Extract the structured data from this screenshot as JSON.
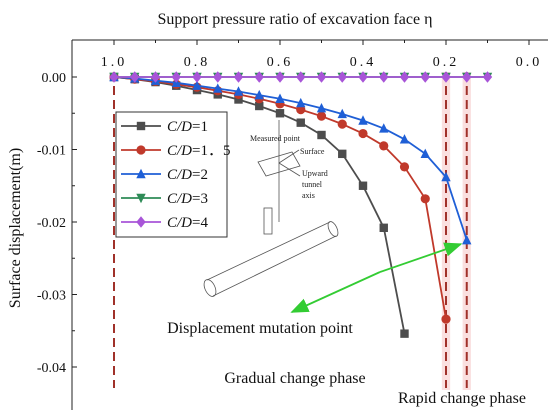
{
  "chart_data": {
    "type": "line",
    "title": "Support pressure ratio of excavation face η",
    "xlabel": "Support pressure ratio of excavation face η",
    "ylabel": "Surface displacement(m)",
    "x_axis_position": "top",
    "x_reversed": true,
    "xlim": [
      1.0,
      0.0
    ],
    "ylim": [
      -0.045,
      0.003
    ],
    "xticks": [
      {
        "value": 1.0,
        "label": "1.0"
      },
      {
        "value": 0.8,
        "label": "0.8"
      },
      {
        "value": 0.6,
        "label": "0.6"
      },
      {
        "value": 0.4,
        "label": "0.4"
      },
      {
        "value": 0.2,
        "label": "0.2"
      },
      {
        "value": 0.0,
        "label": "0.0"
      }
    ],
    "yticks": [
      {
        "value": 0.0,
        "label": "0.00"
      },
      {
        "value": -0.01,
        "label": "-0.01"
      },
      {
        "value": -0.02,
        "label": "-0.02"
      },
      {
        "value": -0.03,
        "label": "-0.03"
      },
      {
        "value": -0.04,
        "label": "-0.04"
      }
    ],
    "legend_position": "left",
    "series": [
      {
        "name": "C/D=1",
        "name_italic": "C/D",
        "name_rest": "=1",
        "color": "#4d4d4d",
        "marker": "square",
        "x": [
          1.0,
          0.95,
          0.9,
          0.85,
          0.8,
          0.75,
          0.7,
          0.65,
          0.6,
          0.55,
          0.5,
          0.45,
          0.4,
          0.35,
          0.3
        ],
        "y": [
          0.0,
          -0.0003,
          -0.0007,
          -0.0012,
          -0.0018,
          -0.0024,
          -0.0031,
          -0.004,
          -0.005,
          -0.0063,
          -0.008,
          -0.0106,
          -0.015,
          -0.0208,
          -0.0354
        ]
      },
      {
        "name": "C/D=1.5",
        "name_italic": "C/D",
        "name_rest": "=1．5",
        "color": "#c0392b",
        "marker": "circle",
        "x": [
          1.0,
          0.95,
          0.9,
          0.85,
          0.8,
          0.75,
          0.7,
          0.65,
          0.6,
          0.55,
          0.5,
          0.45,
          0.4,
          0.35,
          0.3,
          0.25,
          0.2
        ],
        "y": [
          0.0,
          -0.0003,
          -0.0006,
          -0.001,
          -0.0014,
          -0.0019,
          -0.0024,
          -0.003,
          -0.0037,
          -0.0045,
          -0.0054,
          -0.0065,
          -0.0078,
          -0.0095,
          -0.0124,
          -0.0168,
          -0.0334
        ]
      },
      {
        "name": "C/D=2",
        "name_italic": "C/D",
        "name_rest": "=2",
        "color": "#1f5fd6",
        "marker": "triangle-up",
        "x": [
          1.0,
          0.95,
          0.9,
          0.85,
          0.8,
          0.75,
          0.7,
          0.65,
          0.6,
          0.55,
          0.5,
          0.45,
          0.4,
          0.35,
          0.3,
          0.25,
          0.2,
          0.15
        ],
        "y": [
          0.0,
          -0.0002,
          -0.0005,
          -0.0008,
          -0.0012,
          -0.0016,
          -0.002,
          -0.0025,
          -0.003,
          -0.0036,
          -0.0043,
          -0.0051,
          -0.006,
          -0.0071,
          -0.0086,
          -0.0106,
          -0.0138,
          -0.0225
        ]
      },
      {
        "name": "C/D=3",
        "name_italic": "C/D",
        "name_rest": "=3",
        "color": "#2e8b57",
        "marker": "triangle-down",
        "x": [
          1.0,
          0.95,
          0.9,
          0.85,
          0.8,
          0.75,
          0.7,
          0.65,
          0.6,
          0.55,
          0.5,
          0.45,
          0.4,
          0.35,
          0.3,
          0.25,
          0.2,
          0.15,
          0.1
        ],
        "y": [
          0.0,
          0.0,
          0.0,
          0.0,
          0.0,
          0.0,
          0.0,
          0.0,
          0.0,
          0.0,
          0.0,
          0.0,
          0.0,
          0.0,
          0.0,
          0.0,
          0.0,
          0.0,
          0.0
        ]
      },
      {
        "name": "C/D=4",
        "name_italic": "C/D",
        "name_rest": "=4",
        "color": "#a855d8",
        "marker": "diamond",
        "x": [
          1.0,
          0.95,
          0.9,
          0.85,
          0.8,
          0.75,
          0.7,
          0.65,
          0.6,
          0.55,
          0.5,
          0.45,
          0.4,
          0.35,
          0.3,
          0.25,
          0.2,
          0.15,
          0.1
        ],
        "y": [
          0.0,
          0.0,
          0.0,
          0.0,
          0.0,
          0.0,
          0.0,
          0.0,
          0.0,
          0.0,
          0.0,
          0.0,
          0.0,
          0.0,
          0.0,
          0.0,
          0.0,
          0.0,
          0.0
        ]
      }
    ],
    "reference_lines": [
      {
        "x": 1.0,
        "color": "#a0312a",
        "style": "dashed"
      },
      {
        "x": 0.2,
        "color": "#a0312a",
        "style": "dashed"
      },
      {
        "x": 0.15,
        "color": "#a0312a",
        "style": "dashed"
      }
    ],
    "shaded_bands": [
      {
        "x_from": 0.21,
        "x_to": 0.19,
        "color": "#f6c4c4"
      },
      {
        "x_from": 0.16,
        "x_to": 0.14,
        "color": "#f6c4c4"
      }
    ],
    "annotations": {
      "mutation_label": "Displacement mutation point",
      "gradual_label": "Gradual change phase",
      "rapid_label": "Rapid change phase",
      "arrow_color": "#33cc33",
      "arrow_target_series": "C/D=2"
    },
    "inset_diagram": {
      "measured_point_label": "Measured point",
      "surface_label": "Surface",
      "upward_label": "Upward",
      "tunnel_label": "tunnel",
      "axis_label": "axis"
    }
  }
}
